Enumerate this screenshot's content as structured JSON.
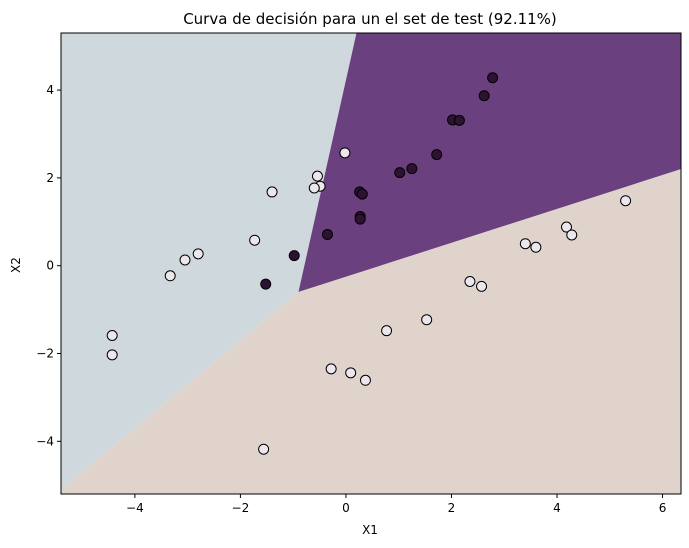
{
  "chart_data": {
    "type": "scatter",
    "title": "Curva de decisión para un el set de test (92.11%)",
    "xlabel": "X1",
    "ylabel": "X2",
    "xlim": [
      -5.4,
      6.35
    ],
    "ylim": [
      -5.2,
      5.3
    ],
    "xticks": [
      -4,
      -2,
      0,
      2,
      4,
      6
    ],
    "yticks": [
      -4,
      -2,
      0,
      2,
      4
    ],
    "xtick_labels": [
      "−4",
      "−2",
      "0",
      "2",
      "4",
      "6"
    ],
    "ytick_labels": [
      "−4",
      "−2",
      "0",
      "2",
      "4"
    ],
    "regions": [
      {
        "name": "light-blue",
        "color": "#cfd8dd",
        "polygon": [
          [
            -5.4,
            5.3
          ],
          [
            0.2,
            5.3
          ],
          [
            -0.9,
            -0.6
          ],
          [
            -5.4,
            -5.1
          ]
        ]
      },
      {
        "name": "purple",
        "color": "#6a417e",
        "polygon": [
          [
            0.2,
            5.3
          ],
          [
            6.35,
            5.3
          ],
          [
            6.35,
            2.2
          ],
          [
            -0.9,
            -0.6
          ]
        ]
      },
      {
        "name": "beige",
        "color": "#e0d3cc",
        "polygon": [
          [
            -0.9,
            -0.6
          ],
          [
            6.35,
            2.2
          ],
          [
            6.35,
            -5.2
          ],
          [
            -5.4,
            -5.2
          ],
          [
            -5.4,
            -5.1
          ]
        ]
      }
    ],
    "series": [
      {
        "name": "class-dark",
        "color": "#2d1233",
        "points": [
          [
            2.78,
            4.28
          ],
          [
            2.62,
            3.87
          ],
          [
            2.02,
            3.32
          ],
          [
            2.15,
            3.31
          ],
          [
            1.72,
            2.53
          ],
          [
            1.25,
            2.21
          ],
          [
            1.02,
            2.12
          ],
          [
            0.26,
            1.68
          ],
          [
            0.31,
            1.63
          ],
          [
            0.27,
            1.12
          ],
          [
            0.27,
            1.06
          ],
          [
            -0.35,
            0.71
          ],
          [
            -0.98,
            0.23
          ],
          [
            -1.52,
            -0.42
          ]
        ]
      },
      {
        "name": "class-light",
        "color": "#ece7ec",
        "points": [
          [
            -0.02,
            2.57
          ],
          [
            -0.54,
            2.04
          ],
          [
            -0.49,
            1.81
          ],
          [
            -0.6,
            1.77
          ],
          [
            -1.4,
            1.68
          ],
          [
            -1.73,
            0.58
          ],
          [
            -2.8,
            0.27
          ],
          [
            -3.05,
            0.13
          ],
          [
            -3.33,
            -0.23
          ],
          [
            -4.43,
            -1.59
          ],
          [
            -4.43,
            -2.03
          ],
          [
            5.3,
            1.48
          ],
          [
            4.18,
            0.88
          ],
          [
            4.28,
            0.7
          ],
          [
            3.4,
            0.5
          ],
          [
            3.6,
            0.42
          ],
          [
            2.35,
            -0.36
          ],
          [
            2.57,
            -0.47
          ],
          [
            1.53,
            -1.23
          ],
          [
            0.77,
            -1.48
          ],
          [
            -0.28,
            -2.35
          ],
          [
            0.09,
            -2.44
          ],
          [
            0.37,
            -2.61
          ],
          [
            -1.56,
            -4.18
          ]
        ]
      }
    ]
  }
}
